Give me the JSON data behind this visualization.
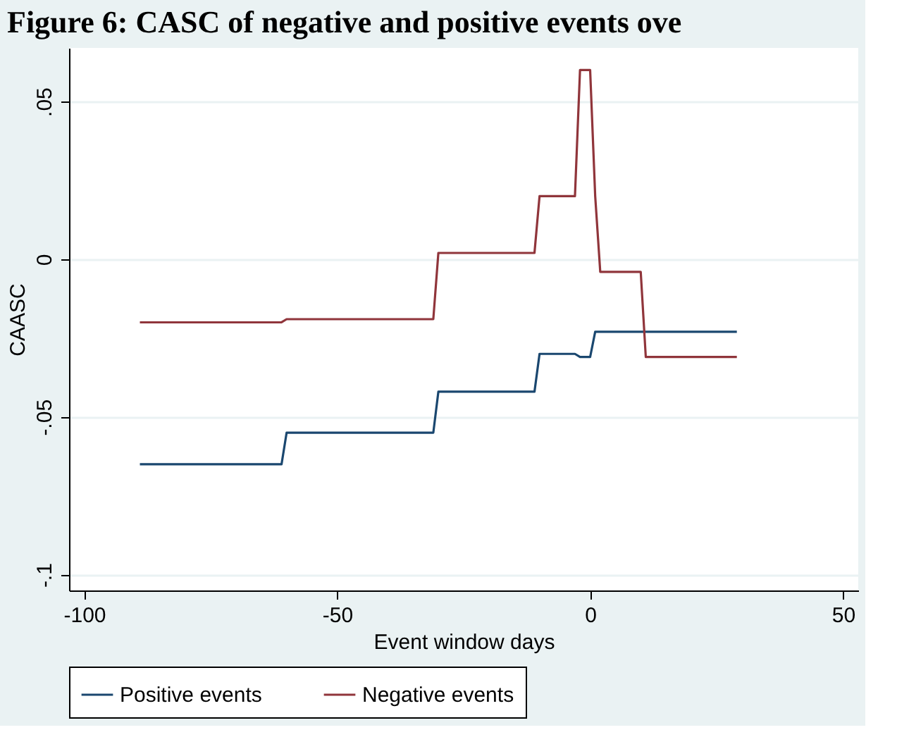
{
  "chart_data": {
    "type": "line",
    "title": "Figure 6: CASC of negative and positive events ove",
    "xlabel": "Event window days",
    "ylabel": "CAASC",
    "series": [
      {
        "name": "Positive events",
        "color": "#1a476f",
        "x": [
          -89,
          -61,
          -60,
          -31,
          -30,
          -11,
          -10,
          -3,
          -2,
          0,
          1,
          29
        ],
        "values": [
          -0.065,
          -0.065,
          -0.055,
          -0.055,
          -0.042,
          -0.042,
          -0.03,
          -0.03,
          -0.031,
          -0.031,
          -0.023,
          -0.023
        ]
      },
      {
        "name": "Negative events",
        "color": "#90353b",
        "x": [
          -89,
          -61,
          -60,
          -31,
          -30,
          -11,
          -10,
          -3,
          -2,
          0,
          1,
          2,
          10,
          11,
          29
        ],
        "values": [
          -0.02,
          -0.02,
          -0.019,
          -0.019,
          0.002,
          0.002,
          0.02,
          0.02,
          0.06,
          0.06,
          0.02,
          -0.004,
          -0.004,
          -0.031,
          -0.031
        ]
      }
    ],
    "xlim": [
      -103,
      53
    ],
    "ylim": [
      -0.105,
      0.067
    ],
    "xticks": [
      -100,
      -50,
      0,
      50
    ],
    "yticks": [
      {
        "value": 0.05,
        "label": ".05"
      },
      0,
      {
        "value": -0.05,
        "label": "-.05"
      },
      {
        "value": -0.1,
        "label": "-.1"
      }
    ],
    "grid": "y",
    "legend": "bottom"
  }
}
